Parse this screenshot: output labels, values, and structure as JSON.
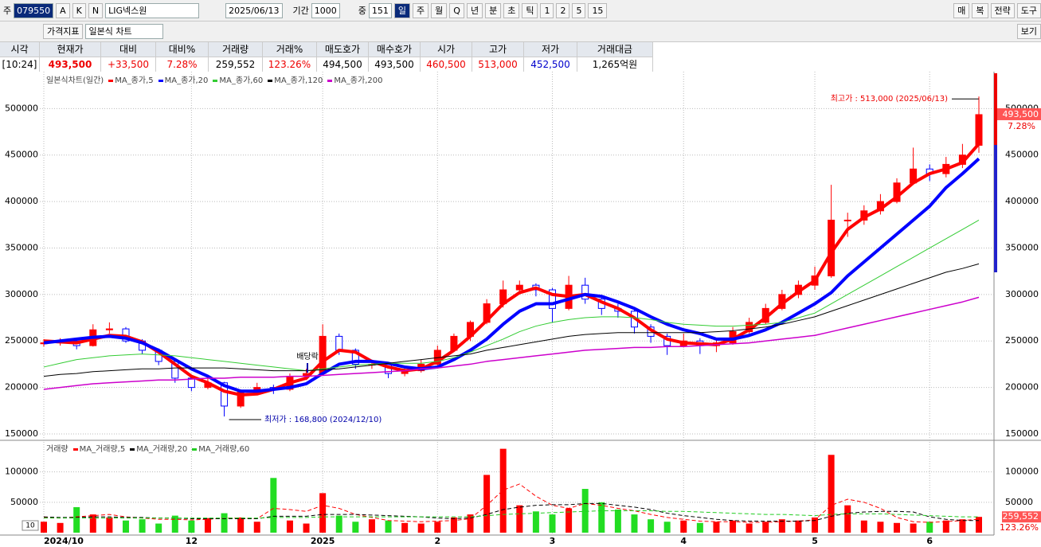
{
  "toolbar": {
    "code_prefix": "주",
    "code": "079550",
    "buttons": [
      "A",
      "K",
      "N"
    ],
    "name": "LIG넥스원",
    "date": "2025/06/13",
    "period_label": "기간",
    "period": "1000",
    "mid_label": "중",
    "mid": "151",
    "periods": [
      "일",
      "주",
      "월",
      "Q",
      "년",
      "분",
      "초",
      "틱",
      "1",
      "2",
      "5",
      "15"
    ],
    "right": [
      "매",
      "복",
      "전략",
      "도구"
    ]
  },
  "toolbar2": {
    "indicator": "가격지표",
    "chart_kind": "일본식 차트",
    "view": "보기"
  },
  "quote": {
    "headers": [
      "시각",
      "현재가",
      "대비",
      "대비%",
      "거래량",
      "거래%",
      "매도호가",
      "매수호가",
      "시가",
      "고가",
      "저가",
      "거래대금"
    ],
    "values": [
      "[10:24]",
      "493,500",
      "+33,500",
      "7.28%",
      "259,552",
      "123.26%",
      "494,500",
      "493,500",
      "460,500",
      "513,000",
      "452,500",
      "1,265억원"
    ]
  },
  "chart_data": [
    {
      "type": "candlestick",
      "title": "일본식차트(일간)",
      "up_color": "#ff0000",
      "down_color": "#0000ff",
      "open": [
        247000,
        248000,
        250000,
        245000,
        262000,
        263000,
        250000,
        240000,
        228000,
        210000,
        200000,
        205000,
        180000,
        195000,
        200000,
        198000,
        212000,
        215000,
        255000,
        240000,
        225000,
        225000,
        215000,
        218000,
        225000,
        240000,
        255000,
        270000,
        290000,
        305000,
        310000,
        305000,
        285000,
        310000,
        295000,
        285000,
        282000,
        265000,
        255000,
        245000,
        250000,
        245000,
        248000,
        260000,
        270000,
        285000,
        300000,
        310000,
        320000,
        380000,
        380000,
        390000,
        400000,
        420000,
        435000,
        430000,
        440000,
        460500
      ],
      "high": [
        252000,
        253000,
        252000,
        268000,
        270000,
        265000,
        252000,
        242000,
        231000,
        212000,
        210000,
        206000,
        198000,
        205000,
        203000,
        215000,
        220000,
        268000,
        258000,
        242000,
        230000,
        227000,
        222000,
        230000,
        245000,
        258000,
        272000,
        295000,
        315000,
        315000,
        312000,
        307000,
        320000,
        318000,
        298000,
        290000,
        284000,
        268000,
        258000,
        258000,
        253000,
        252000,
        265000,
        275000,
        290000,
        305000,
        315000,
        330000,
        418000,
        388000,
        396000,
        408000,
        425000,
        458000,
        440000,
        448000,
        462000,
        513000
      ],
      "low": [
        244000,
        245000,
        241000,
        244000,
        258000,
        248000,
        236000,
        224000,
        205000,
        196000,
        198000,
        168800,
        178000,
        192000,
        193000,
        196000,
        208000,
        214000,
        235000,
        220000,
        220000,
        210000,
        212000,
        216000,
        222000,
        238000,
        250000,
        268000,
        286000,
        300000,
        298000,
        270000,
        283000,
        290000,
        278000,
        275000,
        258000,
        248000,
        235000,
        243000,
        236000,
        238000,
        246000,
        258000,
        268000,
        283000,
        296000,
        305000,
        318000,
        362000,
        375000,
        386000,
        398000,
        418000,
        422000,
        426000,
        436000,
        452500
      ],
      "close": [
        248000,
        250000,
        245000,
        262000,
        263000,
        250000,
        240000,
        228000,
        210000,
        200000,
        205000,
        180000,
        195000,
        200000,
        198000,
        212000,
        215000,
        255000,
        240000,
        225000,
        225000,
        215000,
        218000,
        225000,
        240000,
        255000,
        270000,
        290000,
        305000,
        310000,
        305000,
        285000,
        310000,
        295000,
        285000,
        282000,
        265000,
        255000,
        245000,
        250000,
        245000,
        248000,
        260000,
        270000,
        285000,
        300000,
        310000,
        320000,
        380000,
        380000,
        390000,
        400000,
        420000,
        435000,
        430000,
        440000,
        450000,
        493500
      ],
      "series": [
        {
          "name": "MA_종가,5",
          "color": "#ff0000",
          "values": [
            250000,
            249000,
            248000,
            252000,
            256000,
            255000,
            249000,
            238000,
            225000,
            212000,
            205000,
            196000,
            192000,
            193000,
            198000,
            205000,
            210000,
            228000,
            240000,
            238000,
            228000,
            222000,
            218000,
            220000,
            228000,
            240000,
            255000,
            272000,
            290000,
            302000,
            307000,
            300000,
            298000,
            300000,
            292000,
            285000,
            275000,
            262000,
            252000,
            248000,
            247000,
            246000,
            252000,
            262000,
            275000,
            290000,
            303000,
            315000,
            345000,
            370000,
            383000,
            392000,
            405000,
            420000,
            430000,
            435000,
            442000,
            462000
          ]
        },
        {
          "name": "MA_종가,20",
          "color": "#0000ff",
          "values": [
            248000,
            250000,
            252000,
            254000,
            255000,
            253000,
            248000,
            240000,
            230000,
            220000,
            212000,
            202000,
            196000,
            196000,
            198000,
            200000,
            204000,
            215000,
            225000,
            228000,
            228000,
            226000,
            222000,
            220000,
            222000,
            230000,
            240000,
            252000,
            268000,
            282000,
            290000,
            290000,
            295000,
            300000,
            298000,
            292000,
            285000,
            276000,
            268000,
            262000,
            258000,
            252000,
            252000,
            256000,
            262000,
            270000,
            280000,
            290000,
            302000,
            320000,
            335000,
            350000,
            365000,
            380000,
            395000,
            415000,
            430000,
            446000
          ]
        },
        {
          "name": "MA_종가,60",
          "color": "#33cc33",
          "values": [
            222000,
            226000,
            230000,
            232000,
            234000,
            235000,
            236000,
            235000,
            234000,
            232000,
            230000,
            228000,
            226000,
            224000,
            222000,
            220000,
            218000,
            220000,
            222000,
            224000,
            225000,
            226000,
            226000,
            226000,
            228000,
            232000,
            238000,
            245000,
            252000,
            260000,
            266000,
            270000,
            273000,
            275000,
            276000,
            276000,
            275000,
            273000,
            270000,
            268000,
            267000,
            266000,
            266000,
            267000,
            268000,
            270000,
            275000,
            280000,
            290000,
            300000,
            310000,
            320000,
            330000,
            340000,
            350000,
            360000,
            370000,
            380000
          ]
        },
        {
          "name": "MA_종가,120",
          "color": "#000000",
          "values": [
            212000,
            214000,
            215000,
            217000,
            218000,
            219000,
            220000,
            220000,
            221000,
            221000,
            221000,
            221000,
            220000,
            219000,
            218000,
            218000,
            218000,
            219000,
            220000,
            222000,
            224000,
            226000,
            228000,
            230000,
            232000,
            234000,
            236000,
            240000,
            243000,
            246000,
            249000,
            252000,
            255000,
            257000,
            258000,
            259000,
            259000,
            259000,
            259000,
            259000,
            259000,
            260000,
            261000,
            263000,
            265000,
            268000,
            272000,
            276000,
            282000,
            288000,
            294000,
            300000,
            306000,
            312000,
            318000,
            324000,
            328000,
            333000
          ]
        },
        {
          "name": "MA_종가,200",
          "color": "#cc00cc",
          "values": [
            198000,
            200000,
            202000,
            204000,
            205000,
            206000,
            207000,
            208000,
            208000,
            209000,
            210000,
            210000,
            211000,
            211000,
            211000,
            212000,
            212000,
            213000,
            214000,
            215000,
            216000,
            217000,
            218000,
            220000,
            221000,
            223000,
            225000,
            228000,
            230000,
            232000,
            234000,
            236000,
            238000,
            240000,
            241000,
            242000,
            243000,
            243000,
            244000,
            244000,
            245000,
            246000,
            247000,
            248000,
            250000,
            252000,
            254000,
            256000,
            260000,
            264000,
            268000,
            272000,
            276000,
            280000,
            284000,
            288000,
            292000,
            297000
          ]
        }
      ],
      "ylim": [
        144000,
        538000
      ],
      "yticks": [
        150000,
        200000,
        250000,
        300000,
        350000,
        400000,
        450000,
        500000
      ],
      "grid": true,
      "last_price_label": "493,500",
      "change_label": "7.28%",
      "high_label": "최고가 : 513,000 (2025/06/13)",
      "low_label": "최저가 : 168,800 (2024/12/10)",
      "ex_dividend": "배당락"
    },
    {
      "type": "bar",
      "title": "거래량",
      "multiplier": "10",
      "up_color": "#ff0000",
      "down_color": "#22dd22",
      "categories": [
        "2024/10",
        null,
        null,
        null,
        null,
        null,
        null,
        null,
        null,
        "12",
        null,
        null,
        null,
        null,
        null,
        null,
        null,
        "2025",
        null,
        null,
        null,
        null,
        null,
        null,
        "2",
        null,
        null,
        null,
        null,
        null,
        null,
        "3",
        null,
        null,
        null,
        null,
        null,
        null,
        null,
        "4",
        null,
        null,
        null,
        null,
        null,
        null,
        null,
        "5",
        null,
        null,
        null,
        null,
        null,
        null,
        "6",
        null,
        null,
        null
      ],
      "values": [
        18000,
        16000,
        42000,
        30000,
        25000,
        20000,
        22000,
        15000,
        28000,
        20000,
        24000,
        32000,
        25000,
        18000,
        90000,
        20000,
        15000,
        65000,
        28000,
        18000,
        22000,
        20000,
        16000,
        15000,
        18000,
        25000,
        30000,
        95000,
        138000,
        45000,
        35000,
        30000,
        40000,
        72000,
        50000,
        38000,
        30000,
        22000,
        18000,
        20000,
        16000,
        18000,
        20000,
        15000,
        18000,
        22000,
        20000,
        25000,
        128000,
        45000,
        20000,
        18000,
        16000,
        15000,
        18000,
        20000,
        22000,
        25955
      ],
      "series": [
        {
          "name": "MA_거래량,5",
          "color": "#ff0000",
          "values": [
            25000,
            24000,
            26000,
            28000,
            30000,
            26000,
            24000,
            22000,
            22000,
            21000,
            22000,
            24000,
            24000,
            23000,
            40000,
            38000,
            35000,
            45000,
            40000,
            30000,
            25000,
            20000,
            19000,
            18000,
            19000,
            20000,
            23000,
            45000,
            70000,
            80000,
            60000,
            45000,
            40000,
            48000,
            45000,
            40000,
            36000,
            30000,
            25000,
            22000,
            19000,
            18000,
            18000,
            17000,
            17000,
            18000,
            19000,
            21000,
            45000,
            55000,
            50000,
            40000,
            25000,
            18000,
            17000,
            18000,
            20000,
            22000
          ]
        },
        {
          "name": "MA_거래량,20",
          "color": "#000000",
          "values": [
            26000,
            25000,
            25000,
            26000,
            26000,
            25000,
            25000,
            24000,
            24000,
            23000,
            23000,
            23000,
            23000,
            23000,
            27000,
            27000,
            27000,
            30000,
            30000,
            30000,
            29000,
            28000,
            27000,
            26000,
            24000,
            23000,
            24000,
            30000,
            38000,
            42000,
            45000,
            46000,
            46000,
            48000,
            48000,
            45000,
            42000,
            38000,
            32000,
            28000,
            25000,
            22000,
            20000,
            19000,
            19000,
            19000,
            19000,
            20000,
            27000,
            32000,
            34000,
            35000,
            35000,
            34000,
            26000,
            22000,
            20000,
            20000
          ]
        },
        {
          "name": "MA_거래량,60",
          "color": "#22cc22",
          "values": [
            24000,
            24000,
            24000,
            24000,
            24000,
            24000,
            24000,
            24000,
            24000,
            24000,
            24000,
            24000,
            24000,
            24000,
            25000,
            25000,
            25000,
            26000,
            26000,
            26000,
            26000,
            26000,
            26000,
            26000,
            26000,
            26000,
            26000,
            28000,
            30000,
            31000,
            32000,
            33000,
            34000,
            35000,
            36000,
            36000,
            36000,
            36000,
            35000,
            35000,
            34000,
            33000,
            32000,
            31000,
            30000,
            30000,
            29000,
            28000,
            30000,
            31000,
            31000,
            31000,
            30000,
            29000,
            28000,
            27000,
            26000,
            26000
          ]
        }
      ],
      "ylim": [
        0,
        148000
      ],
      "yticks": [
        50000,
        100000
      ],
      "grid": true,
      "last_volume_label": "259,552",
      "ratio_label": "123.26%"
    }
  ]
}
